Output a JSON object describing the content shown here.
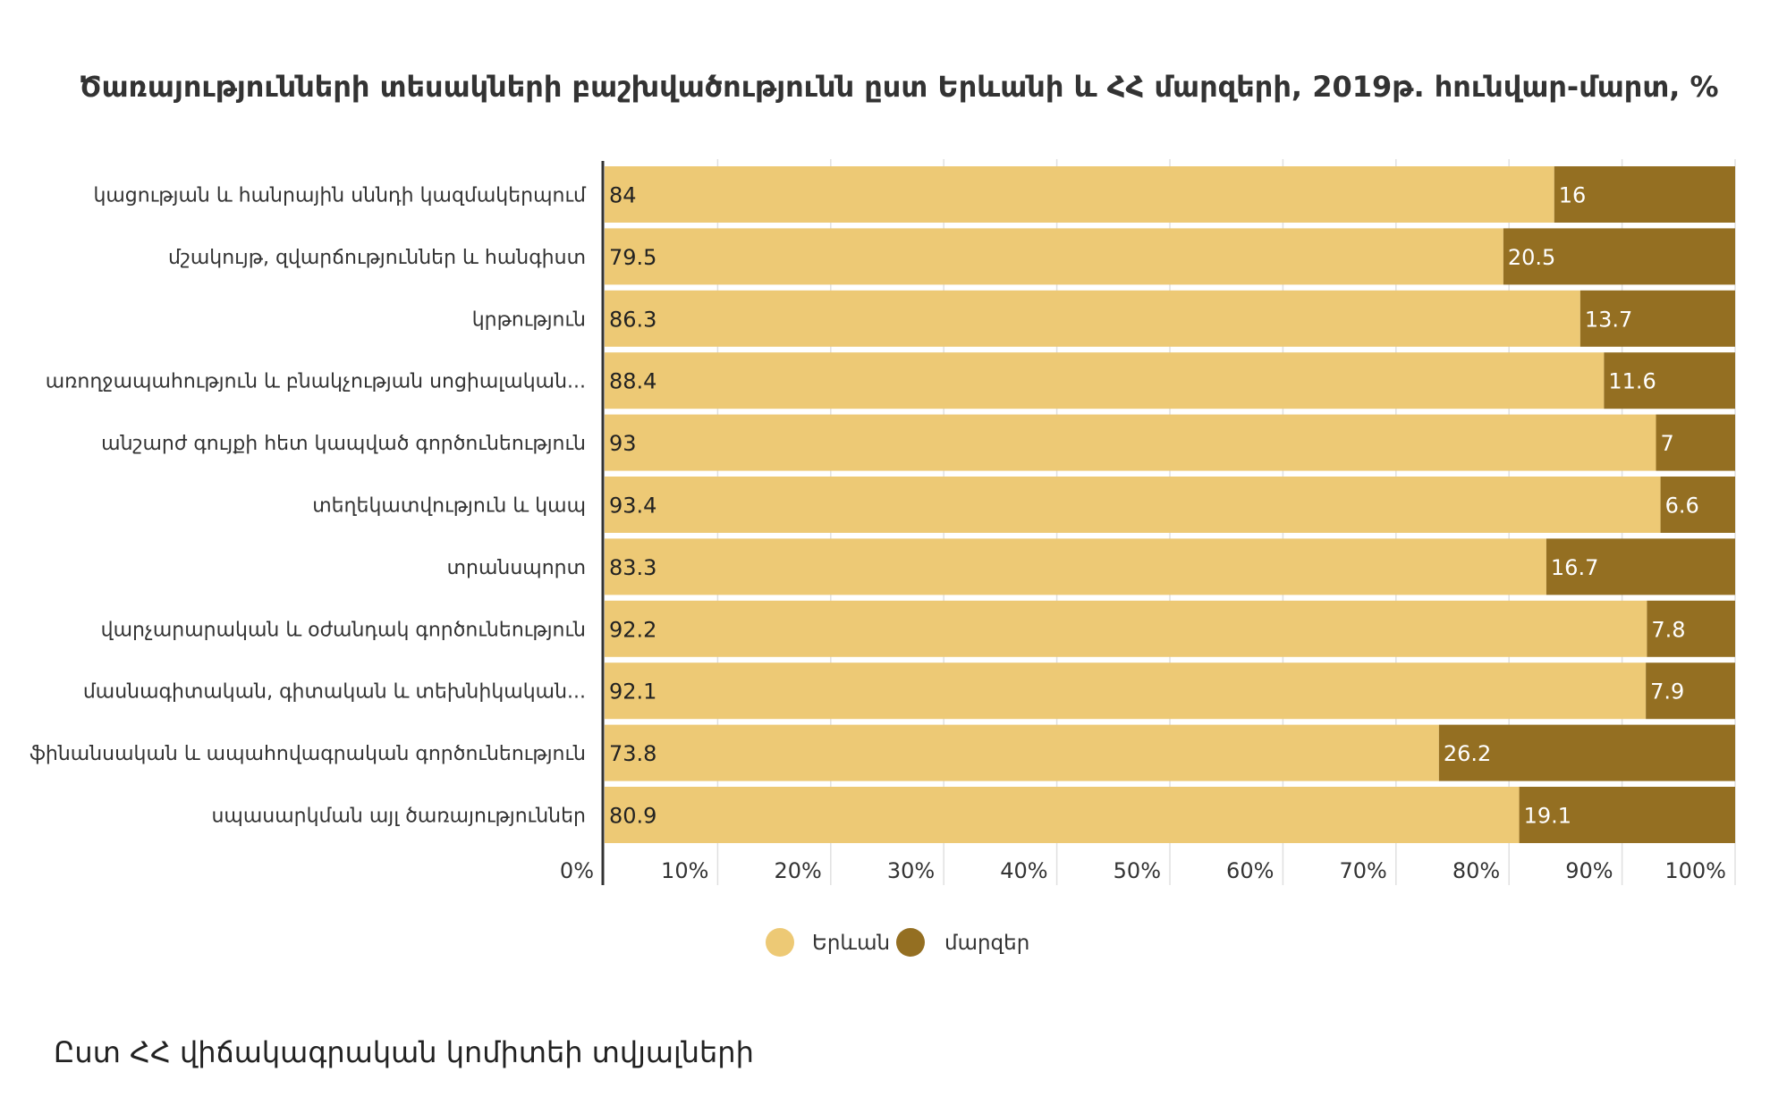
{
  "chart_data": {
    "type": "bar",
    "orientation": "horizontal",
    "stacked": true,
    "title": "Ծառայությունների տեսակների բաշխվածությունն ըստ Երևանի և ՀՀ մարզերի, 2019թ. հունվար-մարտ, %",
    "categories": [
      "կացության և հանրային սննդի կազմակերպում",
      "մշակույթ, զվարճություններ և հանգիստ",
      "կրթություն",
      "առողջապահություն և բնակչության սոցիալական...",
      "անշարժ գույքի հետ կապված գործունեություն",
      "տեղեկատվություն և կապ",
      "տրանսպորտ",
      "վարչարարական և օժանդակ գործունեություն",
      "մասնագիտական, գիտական և տեխնիկական...",
      "ֆինանսական և ապահովագրական գործունեություն",
      "սպասարկման այլ ծառայություններ"
    ],
    "series": [
      {
        "name": "Երևան",
        "color": "#edc975",
        "values": [
          84,
          79.5,
          86.3,
          88.4,
          93,
          93.4,
          83.3,
          92.2,
          92.1,
          73.8,
          80.9
        ],
        "labels": [
          "84",
          "79.5",
          "86.3",
          "88.4",
          "93",
          "93.4",
          "83.3",
          "92.2",
          "92.1",
          "73.8",
          "80.9"
        ]
      },
      {
        "name": "մարզեր",
        "color": "#946f22",
        "values": [
          16,
          20.5,
          13.7,
          11.6,
          7,
          6.6,
          16.7,
          7.8,
          7.9,
          26.2,
          19.1
        ],
        "labels": [
          "16",
          "20.5",
          "13.7",
          "11.6",
          "7",
          "6.6",
          "16.7",
          "7.8",
          "7.9",
          "26.2",
          "19.1"
        ]
      }
    ],
    "xlim": [
      0,
      100
    ],
    "x_ticks": [
      "0%",
      "10%",
      "20%",
      "30%",
      "40%",
      "50%",
      "60%",
      "70%",
      "80%",
      "90%",
      "100%"
    ],
    "grid": true,
    "legend_position": "bottom"
  },
  "footnote": "Ըստ ՀՀ վիճակագրական կոմիտեի տվյալների"
}
